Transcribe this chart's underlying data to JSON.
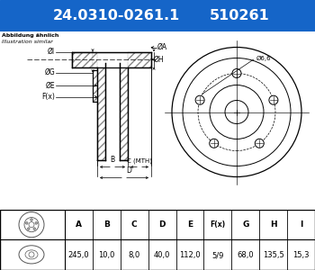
{
  "title1": "24.0310-0261.1",
  "title2": "510261",
  "title_bg": "#1565c8",
  "title_fg": "#ffffff",
  "note1": "Abbildung ähnlich",
  "note2": "Illustration similar",
  "col_headers": [
    "A",
    "B",
    "C",
    "D",
    "E",
    "F(x)",
    "G",
    "H",
    "I"
  ],
  "col_values": [
    "245,0",
    "10,0",
    "8,0",
    "40,0",
    "112,0",
    "5/9",
    "68,0",
    "135,5",
    "15,3"
  ],
  "dim_label_I": "ØI",
  "dim_label_G": "ØG",
  "dim_label_E": "ØE",
  "dim_label_Fx": "F(x)",
  "dim_label_H": "ØH",
  "dim_label_A": "ØA",
  "hole_label": "Ø6,6",
  "line_color": "#000000",
  "fig_width": 3.5,
  "fig_height": 3.0,
  "dpi": 100
}
